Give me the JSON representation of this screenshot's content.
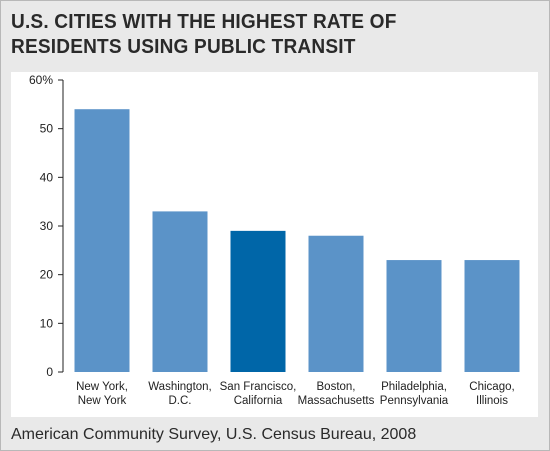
{
  "title": "U.S. CITIES WITH THE HIGHEST RATE OF RESIDENTS USING PUBLIC TRANSIT",
  "source": "American Community Survey, U.S. Census Bureau, 2008",
  "colors": {
    "bar": "#5b93c8",
    "highlight": "#0066a8",
    "panel": "#e9e9e9"
  },
  "chart_data": {
    "type": "bar",
    "title": "U.S. CITIES WITH THE HIGHEST RATE OF RESIDENTS USING PUBLIC TRANSIT",
    "xlabel": "",
    "ylabel": "",
    "ylim": [
      0,
      60
    ],
    "ytick_values": [
      0,
      10,
      20,
      30,
      40,
      50,
      60
    ],
    "ytick_labels": [
      "0",
      "10",
      "20",
      "30",
      "40",
      "50",
      "60%"
    ],
    "categories": [
      [
        "New York,",
        "New York"
      ],
      [
        "Washington,",
        "D.C."
      ],
      [
        "San Francisco,",
        "California"
      ],
      [
        "Boston,",
        "Massachusetts"
      ],
      [
        "Philadelphia,",
        "Pennsylvania"
      ],
      [
        "Chicago,",
        "Illinois"
      ]
    ],
    "values": [
      54,
      33,
      29,
      28,
      23,
      23
    ],
    "highlight_index": 2,
    "grid": false,
    "legend": "none"
  }
}
